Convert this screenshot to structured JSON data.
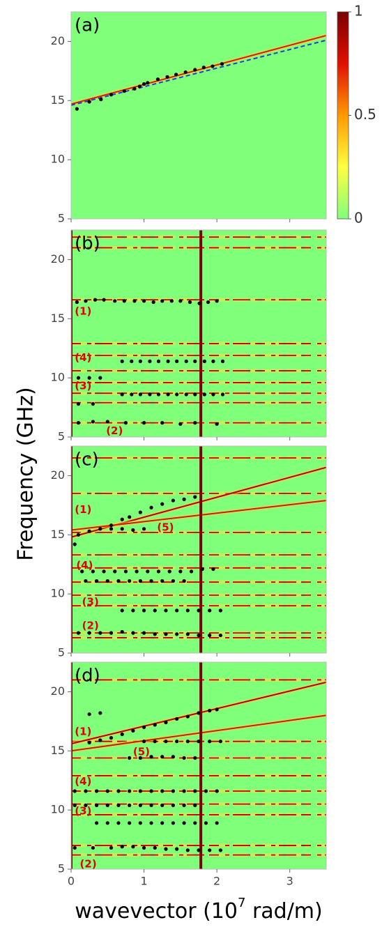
{
  "shared": {
    "ylabel": "Frequency (GHz)",
    "xlabel": [
      "wavevector (10",
      "7",
      " rad/m)"
    ],
    "xlim": [
      0,
      3.5
    ],
    "xticks": [
      0,
      1,
      2,
      3
    ]
  },
  "chart_data": [
    {
      "type": "heatmap",
      "panel_label": "(a)",
      "ylim": [
        5,
        22.5
      ],
      "yticks": [
        5,
        10,
        15,
        20
      ],
      "background": "#80ff7a",
      "bands": [],
      "vlines": [],
      "lines": [
        {
          "x": [
            0,
            3.5
          ],
          "y": [
            14.7,
            20.5
          ],
          "color": "#d02000",
          "style": "solid"
        },
        {
          "x": [
            0,
            3.5
          ],
          "y": [
            14.6,
            20.1
          ],
          "color": "#2040d0",
          "style": "dashed"
        }
      ],
      "series": [
        {
          "x": [
            0.08,
            0.25,
            0.41,
            0.55,
            0.73,
            0.87,
            0.94,
            1.0,
            1.05,
            1.19,
            1.32,
            1.44,
            1.57,
            1.7,
            1.82,
            1.94,
            2.07
          ],
          "y": [
            14.3,
            14.9,
            15.1,
            15.5,
            15.8,
            16.0,
            16.2,
            16.4,
            16.5,
            16.8,
            17.0,
            17.2,
            17.4,
            17.6,
            17.8,
            17.9,
            18.1
          ],
          "color": "#000000"
        }
      ],
      "annotations": [],
      "colorbar": {
        "clim": [
          0,
          1
        ],
        "ticks": [
          0,
          0.5,
          1
        ],
        "colors": [
          "#80ff7a",
          "#ffff40",
          "#ff9a00",
          "#e01000",
          "#7a0000"
        ]
      }
    },
    {
      "type": "heatmap",
      "panel_label": "(b)",
      "ylim": [
        5,
        22.5
      ],
      "yticks": [
        5,
        10,
        15,
        20
      ],
      "background": "#80ff7a",
      "bands": [
        6.2,
        7.9,
        8.7,
        9.6,
        10.6,
        11.9,
        12.9,
        16.6,
        21.0,
        21.9
      ],
      "vlines": [
        0,
        1.78
      ],
      "lines": [],
      "series": [
        {
          "x": [
            0.08,
            0.2,
            0.33,
            0.45,
            0.6,
            0.73,
            0.87,
            1.0,
            1.13,
            1.25,
            1.38,
            1.5,
            1.63,
            1.76,
            1.88,
            2.0
          ],
          "y": [
            16.4,
            16.5,
            16.6,
            16.6,
            16.5,
            16.5,
            16.5,
            16.5,
            16.4,
            16.5,
            16.5,
            16.5,
            16.4,
            16.3,
            16.4,
            16.5
          ],
          "color": "#000000"
        },
        {
          "x": [
            0.7,
            0.83,
            0.95,
            1.08,
            1.2,
            1.33,
            1.45,
            1.58,
            1.7,
            1.83,
            1.95,
            2.08
          ],
          "y": [
            11.4,
            11.4,
            11.4,
            11.4,
            11.4,
            11.4,
            11.4,
            11.4,
            11.4,
            11.4,
            11.4,
            11.4
          ],
          "color": "#000000"
        },
        {
          "x": [
            0.1,
            0.25,
            0.4
          ],
          "y": [
            10.0,
            10.0,
            10.0
          ],
          "color": "#000000"
        },
        {
          "x": [
            0.7,
            0.83,
            0.95,
            1.08,
            1.2,
            1.33,
            1.45,
            1.58,
            1.7,
            1.83,
            1.95,
            2.08
          ],
          "y": [
            8.6,
            8.6,
            8.6,
            8.6,
            8.6,
            8.6,
            8.6,
            8.6,
            8.6,
            8.6,
            8.6,
            8.6
          ],
          "color": "#000000"
        },
        {
          "x": [
            0.1,
            0.3
          ],
          "y": [
            7.8,
            7.8
          ],
          "color": "#000000"
        },
        {
          "x": [
            0.1,
            0.3,
            0.5,
            0.75,
            1.0,
            1.25,
            1.5,
            1.7,
            2.0
          ],
          "y": [
            6.2,
            6.3,
            6.3,
            6.2,
            6.2,
            6.2,
            6.1,
            6.2,
            6.1
          ],
          "color": "#000000"
        }
      ],
      "annotations": [
        {
          "text": "(1)",
          "x": 0.05,
          "y": 15.6
        },
        {
          "text": "(4)",
          "x": 0.05,
          "y": 11.7
        },
        {
          "text": "(3)",
          "x": 0.05,
          "y": 9.3
        },
        {
          "text": "(2)",
          "x": 0.48,
          "y": 5.5
        }
      ]
    },
    {
      "type": "heatmap",
      "panel_label": "(c)",
      "ylim": [
        5,
        22.5
      ],
      "yticks": [
        5,
        10,
        15,
        20
      ],
      "background": "#80ff7a",
      "bands": [
        6.3,
        6.7,
        9.0,
        9.9,
        11.0,
        12.2,
        13.3,
        15.2,
        18.5,
        21.5
      ],
      "vlines": [
        0,
        1.78
      ],
      "lines": [
        {
          "x": [
            0,
            3.5
          ],
          "y": [
            14.8,
            20.7
          ],
          "color": "#b00000",
          "style": "solid"
        },
        {
          "x": [
            0,
            3.5
          ],
          "y": [
            15.4,
            17.9
          ],
          "color": "#c02000",
          "style": "solid"
        }
      ],
      "series": [
        {
          "x": [
            0.05,
            0.1,
            0.25,
            0.4,
            0.55,
            0.7,
            0.8,
            0.95,
            1.1,
            1.25,
            1.4,
            1.55,
            1.7
          ],
          "y": [
            14.2,
            15.0,
            15.3,
            15.5,
            15.8,
            16.3,
            16.5,
            16.9,
            17.3,
            17.6,
            17.9,
            18.0,
            18.2
          ],
          "color": "#000000"
        },
        {
          "x": [
            0.55,
            0.7,
            0.85,
            1.0
          ],
          "y": [
            15.5,
            15.5,
            15.4,
            15.5
          ],
          "color": "#000000"
        },
        {
          "x": [
            0.15,
            0.3,
            0.45,
            0.6,
            0.75,
            0.9,
            1.05,
            1.2,
            1.35,
            1.5,
            1.65,
            1.8,
            1.95
          ],
          "y": [
            11.9,
            11.9,
            11.9,
            11.9,
            11.9,
            11.9,
            11.9,
            11.9,
            11.9,
            11.9,
            11.9,
            12.1,
            12.1
          ],
          "color": "#000000"
        },
        {
          "x": [
            0.2,
            0.35,
            0.5,
            0.65,
            0.8,
            0.95,
            1.1,
            1.25,
            1.4,
            1.55
          ],
          "y": [
            11.1,
            11.1,
            11.1,
            11.1,
            11.1,
            11.1,
            11.1,
            11.1,
            11.1,
            11.1
          ],
          "color": "#000000"
        },
        {
          "x": [
            0.7,
            0.85,
            1.0,
            1.15,
            1.3,
            1.45,
            1.6,
            1.75,
            1.9,
            2.05
          ],
          "y": [
            8.6,
            8.6,
            8.6,
            8.6,
            8.6,
            8.6,
            8.6,
            8.6,
            8.6,
            8.6
          ],
          "color": "#000000"
        },
        {
          "x": [
            0.1,
            0.25,
            0.4,
            0.55,
            0.7,
            0.85,
            1.0,
            1.15,
            1.3,
            1.45,
            1.6,
            1.75,
            1.9,
            2.05
          ],
          "y": [
            6.7,
            6.7,
            6.7,
            6.7,
            6.8,
            6.7,
            6.7,
            6.6,
            6.6,
            6.6,
            6.6,
            6.5,
            6.5,
            6.5
          ],
          "color": "#000000"
        }
      ],
      "annotations": [
        {
          "text": "(1)",
          "x": 0.05,
          "y": 17.1
        },
        {
          "text": "(5)",
          "x": 1.18,
          "y": 15.6
        },
        {
          "text": "(4)",
          "x": 0.07,
          "y": 12.4
        },
        {
          "text": "(3)",
          "x": 0.15,
          "y": 9.3
        },
        {
          "text": "(2)",
          "x": 0.15,
          "y": 7.3
        }
      ]
    },
    {
      "type": "heatmap",
      "panel_label": "(d)",
      "ylim": [
        5,
        22.5
      ],
      "yticks": [
        5,
        10,
        15,
        20
      ],
      "background": "#80ff7a",
      "bands": [
        6.2,
        7.0,
        9.6,
        10.5,
        11.6,
        12.9,
        14.4,
        15.8,
        21.0
      ],
      "vlines": [
        0,
        1.78
      ],
      "lines": [
        {
          "x": [
            0,
            3.5
          ],
          "y": [
            15.6,
            20.8
          ],
          "color": "#b00000",
          "style": "solid"
        },
        {
          "x": [
            0,
            3.5
          ],
          "y": [
            15.0,
            18.0
          ],
          "color": "#c02000",
          "style": "solid"
        }
      ],
      "series": [
        {
          "x": [
            0.25,
            0.4,
            0.55,
            0.7,
            0.85,
            1.0,
            1.15,
            1.3,
            1.45,
            1.6,
            1.75,
            1.9,
            2.0
          ],
          "y": [
            15.7,
            15.9,
            16.1,
            16.4,
            16.7,
            17.0,
            17.2,
            17.4,
            17.7,
            17.9,
            18.2,
            18.4,
            18.5
          ],
          "color": "#000000"
        },
        {
          "x": [
            0.25,
            0.4
          ],
          "y": [
            18.1,
            18.2
          ],
          "color": "#000000"
        },
        {
          "x": [
            1.0,
            1.15,
            1.3,
            1.45,
            1.6,
            1.75,
            1.9,
            2.05
          ],
          "y": [
            15.8,
            15.8,
            15.8,
            15.8,
            15.8,
            15.8,
            15.8,
            15.8
          ],
          "color": "#000000"
        },
        {
          "x": [
            0.8,
            0.95,
            1.1,
            1.25,
            1.4,
            1.55,
            1.7
          ],
          "y": [
            14.4,
            14.4,
            14.5,
            14.5,
            14.5,
            14.4,
            14.4
          ],
          "color": "#000000"
        },
        {
          "x": [
            0.05,
            0.2,
            0.35,
            0.5,
            0.65,
            0.8,
            0.95,
            1.1,
            1.25,
            1.4,
            1.55,
            1.7,
            1.85,
            2.0
          ],
          "y": [
            11.6,
            11.6,
            11.6,
            11.6,
            11.6,
            11.6,
            11.6,
            11.6,
            11.6,
            11.6,
            11.6,
            11.6,
            11.6,
            11.6
          ],
          "color": "#000000"
        },
        {
          "x": [
            0.05,
            0.2,
            0.35,
            0.5,
            0.65,
            0.8,
            0.95,
            1.1,
            1.25,
            1.4,
            1.55,
            1.7
          ],
          "y": [
            10.4,
            10.4,
            10.4,
            10.4,
            10.4,
            10.4,
            10.4,
            10.4,
            10.4,
            10.4,
            10.4,
            10.4
          ],
          "color": "#000000"
        },
        {
          "x": [
            0.35,
            0.5,
            0.65,
            0.8,
            0.95,
            1.1,
            1.25,
            1.4,
            1.55,
            1.7,
            1.85,
            2.0
          ],
          "y": [
            8.9,
            8.9,
            8.9,
            8.9,
            8.9,
            8.9,
            8.9,
            8.9,
            8.9,
            8.9,
            8.9,
            8.9
          ],
          "color": "#000000"
        },
        {
          "x": [
            0.05,
            0.3,
            0.55,
            0.7,
            0.85,
            1.0,
            1.15,
            1.3,
            1.45,
            1.6,
            1.75,
            1.9,
            2.05
          ],
          "y": [
            6.8,
            6.8,
            6.8,
            6.9,
            6.9,
            6.8,
            6.8,
            6.7,
            6.7,
            6.6,
            6.6,
            6.6,
            6.6
          ],
          "color": "#000000"
        }
      ],
      "annotations": [
        {
          "text": "(1)",
          "x": 0.05,
          "y": 16.6
        },
        {
          "text": "(5)",
          "x": 0.85,
          "y": 14.9
        },
        {
          "text": "(4)",
          "x": 0.05,
          "y": 12.4
        },
        {
          "text": "(3)",
          "x": 0.05,
          "y": 9.9
        },
        {
          "text": "(2)",
          "x": 0.12,
          "y": 5.4
        }
      ]
    }
  ]
}
